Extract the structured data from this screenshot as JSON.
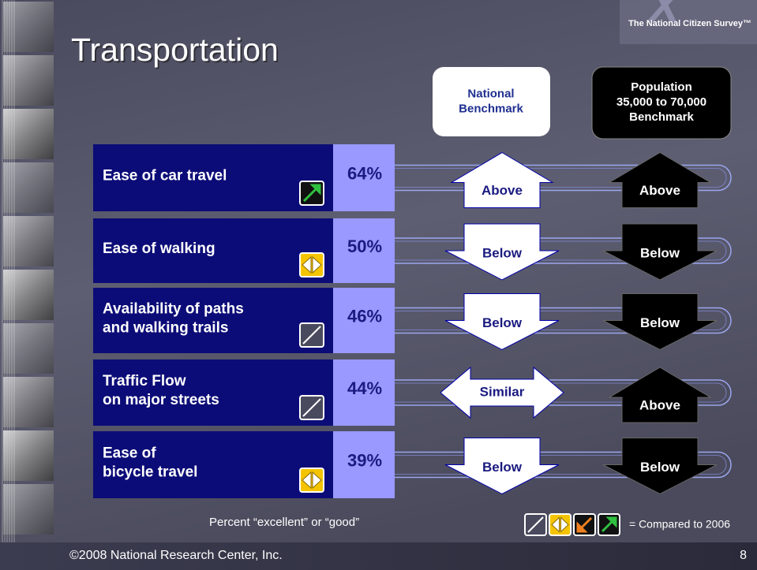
{
  "header": {
    "title": "Transportation",
    "logo": "The National Citizen Survey™"
  },
  "columns": {
    "national": [
      "National",
      "Benchmark"
    ],
    "population": [
      "Population",
      "35,000 to 70,000",
      "Benchmark"
    ]
  },
  "rows": [
    {
      "label": [
        "Ease of car travel"
      ],
      "percent": "64%",
      "national": "Above",
      "population": "Above"
    },
    {
      "label": [
        "Ease of walking"
      ],
      "percent": "50%",
      "national": "Below",
      "population": "Below"
    },
    {
      "label": [
        "Availability of paths",
        "and walking trails"
      ],
      "percent": "46%",
      "national": "Below",
      "population": "Below"
    },
    {
      "label": [
        "Traffic Flow",
        "on major streets"
      ],
      "percent": "44%",
      "national": "Similar",
      "population": "Above"
    },
    {
      "label": [
        "Ease of",
        "bicycle travel"
      ],
      "percent": "39%",
      "national": "Below",
      "population": "Below"
    }
  ],
  "footnote": "Percent “excellent” or “good”",
  "legend": "= Compared to 2006",
  "footer": {
    "copyright": "©2008 National Research Center, Inc.",
    "page": "8"
  }
}
